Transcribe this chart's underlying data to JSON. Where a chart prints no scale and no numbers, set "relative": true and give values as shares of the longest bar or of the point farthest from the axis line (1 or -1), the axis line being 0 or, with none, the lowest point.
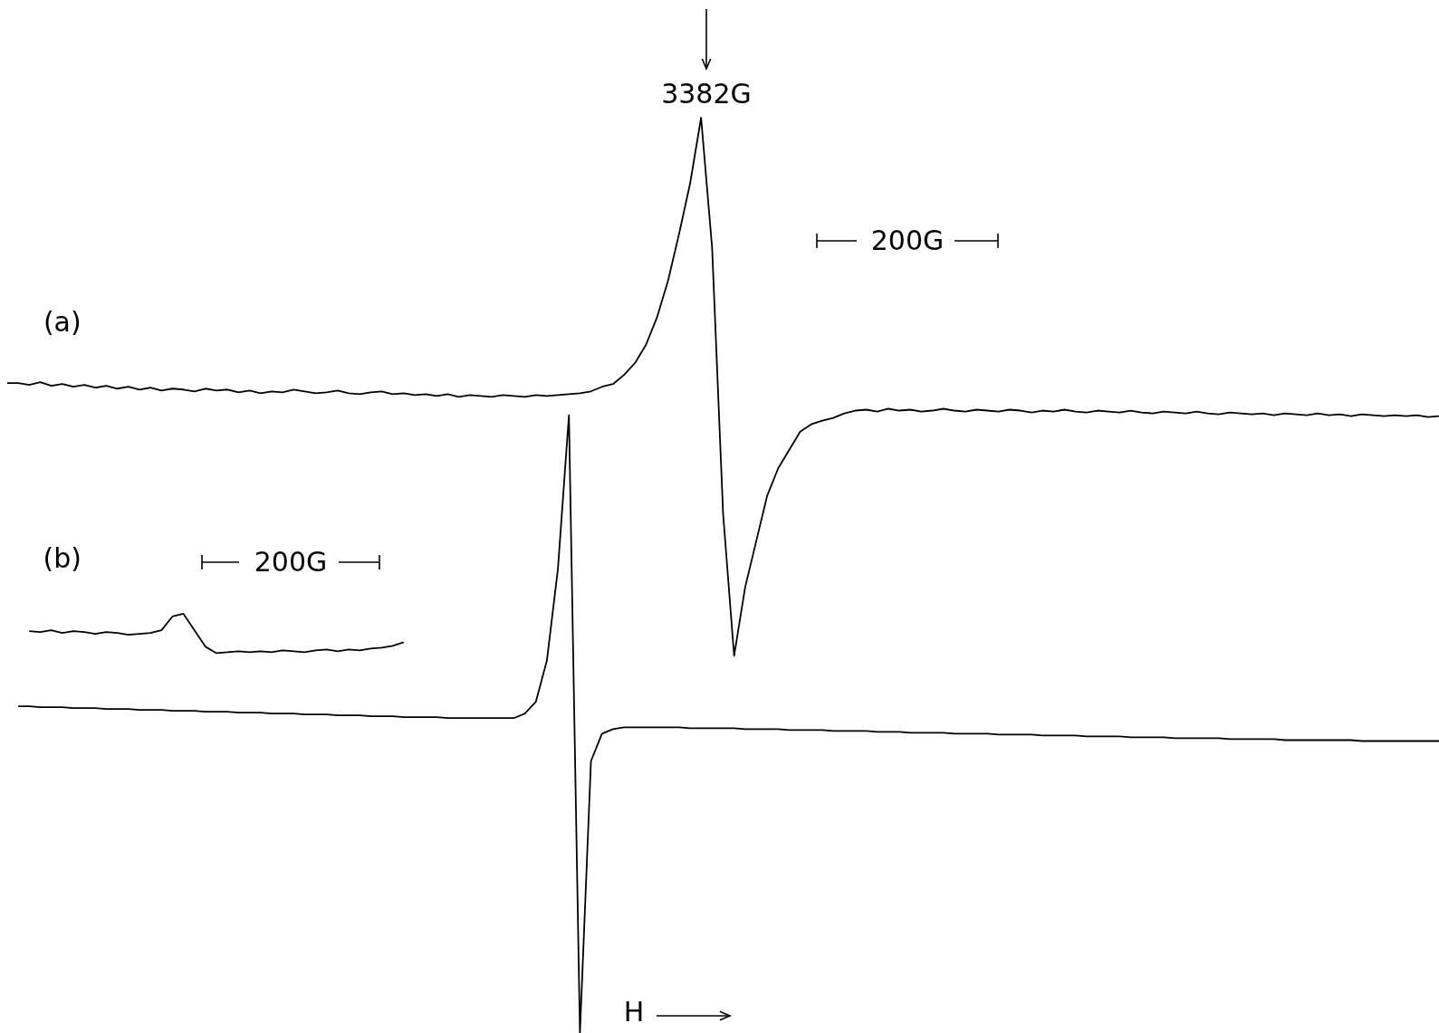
{
  "chart_data": {
    "type": "line",
    "relative": true,
    "marker": "none",
    "line_style": "solid",
    "tick_labels": false,
    "categories": [
      null,
      null,
      null,
      null,
      null,
      null,
      null,
      null,
      null,
      null,
      null,
      null,
      null,
      null,
      null,
      null,
      null,
      null,
      null,
      null,
      null,
      null,
      null,
      null,
      null,
      null,
      null,
      null,
      null,
      null,
      null,
      null,
      null,
      null,
      null,
      null,
      null,
      null,
      null,
      null,
      null,
      null,
      null,
      null,
      null,
      null,
      null,
      null,
      null,
      null,
      null,
      null,
      null,
      null,
      null,
      null,
      null,
      null,
      null,
      null,
      null,
      null,
      null,
      null,
      null,
      null,
      null,
      null,
      null,
      null,
      null,
      null,
      null,
      null,
      null,
      null,
      null,
      null,
      null,
      null,
      null,
      null,
      null,
      null,
      null,
      null,
      null,
      null,
      null,
      null,
      null,
      null,
      null,
      null,
      null,
      null,
      null,
      null,
      null,
      null,
      null,
      null,
      null,
      null,
      null,
      null,
      null,
      null,
      null,
      null,
      null,
      null,
      null,
      null,
      null,
      null,
      null,
      null,
      null,
      null,
      null,
      null,
      null,
      null,
      null,
      null,
      null,
      null,
      null,
      null,
      null
    ],
    "series": [
      {
        "name": "(a)",
        "color": "#000000",
        "values": [
          0.71,
          0.71,
          0.708,
          0.711,
          0.707,
          0.709,
          0.706,
          0.708,
          0.705,
          0.707,
          0.704,
          0.706,
          0.703,
          0.705,
          0.702,
          0.704,
          0.703,
          0.701,
          0.704,
          0.702,
          0.703,
          0.7,
          0.702,
          0.699,
          0.701,
          0.7,
          0.703,
          0.701,
          0.699,
          0.7,
          0.702,
          0.699,
          0.698,
          0.7,
          0.701,
          0.698,
          0.699,
          0.697,
          0.698,
          0.696,
          0.698,
          0.695,
          0.697,
          0.696,
          0.695,
          0.697,
          0.696,
          0.695,
          0.697,
          0.696,
          0.697,
          0.698,
          0.699,
          0.701,
          0.706,
          0.709,
          0.719,
          0.732,
          0.752,
          0.782,
          0.822,
          0.873,
          0.928,
          1.0,
          0.858,
          0.567,
          0.412,
          0.487,
          0.537,
          0.587,
          0.617,
          0.637,
          0.657,
          0.665,
          0.669,
          0.672,
          0.677,
          0.68,
          0.681,
          0.679,
          0.682,
          0.68,
          0.681,
          0.679,
          0.68,
          0.682,
          0.68,
          0.679,
          0.681,
          0.68,
          0.679,
          0.681,
          0.68,
          0.678,
          0.68,
          0.679,
          0.681,
          0.679,
          0.678,
          0.68,
          0.679,
          0.678,
          0.68,
          0.678,
          0.677,
          0.679,
          0.678,
          0.677,
          0.679,
          0.677,
          0.676,
          0.678,
          0.677,
          0.676,
          0.677,
          0.675,
          0.677,
          0.676,
          0.675,
          0.677,
          0.675,
          0.676,
          0.674,
          0.676,
          0.675,
          0.674,
          0.675,
          0.674,
          0.675,
          0.673,
          0.674
        ]
      },
      {
        "color": "#000000",
        "values": [
          null,
          0.357,
          0.357,
          0.356,
          0.356,
          0.356,
          0.355,
          0.355,
          0.355,
          0.354,
          0.354,
          0.354,
          0.353,
          0.353,
          0.353,
          0.352,
          0.352,
          0.352,
          0.351,
          0.351,
          0.351,
          0.35,
          0.35,
          0.35,
          0.349,
          0.349,
          0.349,
          0.348,
          0.348,
          0.348,
          0.347,
          0.347,
          0.347,
          0.346,
          0.346,
          0.346,
          0.345,
          0.345,
          0.345,
          0.345,
          0.344,
          0.344,
          0.344,
          0.344,
          0.344,
          0.344,
          0.344,
          0.349,
          0.362,
          0.407,
          0.507,
          0.675,
          0,
          0.297,
          0.327,
          0.332,
          0.334,
          0.334,
          0.334,
          0.334,
          0.334,
          0.334,
          0.333,
          0.333,
          0.333,
          0.333,
          0.333,
          0.332,
          0.332,
          0.332,
          0.332,
          0.331,
          0.331,
          0.331,
          0.331,
          0.33,
          0.33,
          0.33,
          0.33,
          0.329,
          0.329,
          0.329,
          0.328,
          0.328,
          0.328,
          0.328,
          0.327,
          0.327,
          0.327,
          0.327,
          0.326,
          0.326,
          0.326,
          0.326,
          0.325,
          0.325,
          0.325,
          0.325,
          0.324,
          0.324,
          0.324,
          0.324,
          0.323,
          0.323,
          0.323,
          0.323,
          0.322,
          0.322,
          0.322,
          0.322,
          0.322,
          0.321,
          0.321,
          0.321,
          0.321,
          0.321,
          0.32,
          0.32,
          0.32,
          0.32,
          0.32,
          0.32,
          0.32,
          0.319,
          0.319,
          0.319,
          0.319,
          0.319,
          0.319,
          0.319,
          0.319
        ]
      },
      {
        "name": "(b)",
        "color": "#000000",
        "values": [
          null,
          null,
          0.439,
          0.438,
          0.44,
          0.437,
          0.439,
          0.438,
          0.436,
          0.438,
          0.437,
          0.435,
          0.436,
          0.437,
          0.44,
          0.455,
          0.458,
          0.44,
          0.422,
          0.415,
          0.416,
          0.417,
          0.416,
          0.417,
          0.416,
          0.418,
          0.417,
          0.416,
          0.418,
          0.419,
          0.417,
          0.419,
          0.418,
          0.42,
          0.421,
          0.423,
          0.427,
          null,
          null,
          null,
          null,
          null,
          null,
          null,
          null,
          null,
          null,
          null,
          null,
          null,
          null,
          null,
          null,
          null,
          null,
          null,
          null,
          null,
          null,
          null,
          null,
          null,
          null,
          null,
          null,
          null,
          null,
          null,
          null,
          null,
          null,
          null,
          null,
          null,
          null,
          null,
          null,
          null,
          null,
          null,
          null,
          null,
          null,
          null,
          null,
          null,
          null,
          null,
          null,
          null,
          null,
          null,
          null,
          null,
          null,
          null,
          null,
          null,
          null,
          null,
          null,
          null,
          null,
          null,
          null,
          null,
          null,
          null,
          null,
          null,
          null,
          null,
          null,
          null,
          null,
          null,
          null,
          null,
          null,
          null,
          null,
          null,
          null,
          null,
          null,
          null,
          null,
          null,
          null,
          null,
          null
        ]
      }
    ],
    "annotations": [
      "3382G",
      "200G",
      "200G",
      "H"
    ]
  }
}
